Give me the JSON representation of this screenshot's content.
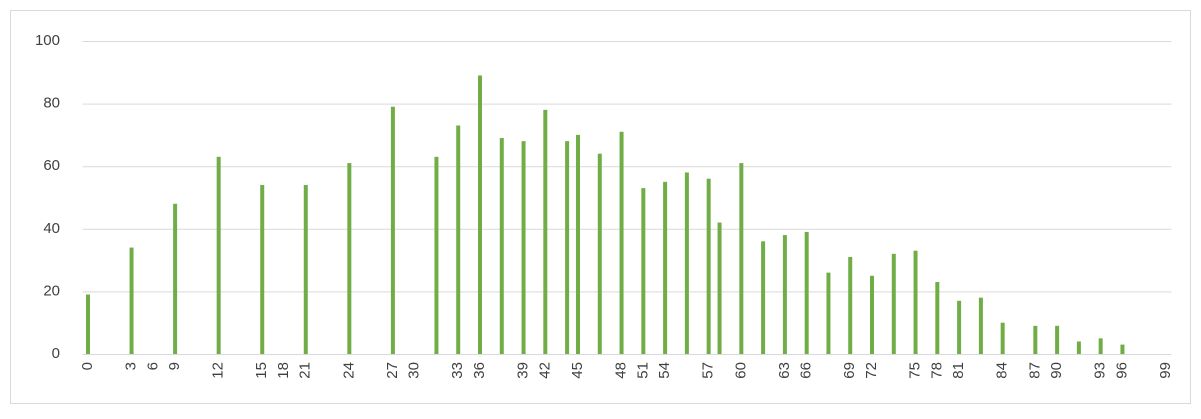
{
  "chart_data": {
    "type": "bar",
    "categories": [
      0,
      null,
      null,
      null,
      3,
      null,
      6,
      null,
      9,
      null,
      null,
      null,
      12,
      null,
      null,
      null,
      15,
      null,
      18,
      null,
      21,
      null,
      null,
      null,
      24,
      null,
      null,
      null,
      27,
      null,
      30,
      null,
      null,
      null,
      33,
      null,
      36,
      null,
      null,
      null,
      39,
      null,
      42,
      null,
      null,
      45,
      null,
      null,
      null,
      48,
      null,
      51,
      null,
      54,
      null,
      null,
      null,
      57,
      null,
      null,
      60,
      null,
      null,
      null,
      63,
      null,
      66,
      null,
      null,
      null,
      69,
      null,
      72,
      null,
      null,
      null,
      75,
      null,
      78,
      null,
      81,
      null,
      null,
      null,
      84,
      null,
      null,
      87,
      null,
      90,
      null,
      null,
      null,
      93,
      null,
      96,
      null,
      null,
      null,
      99
    ],
    "values": [
      19,
      null,
      null,
      null,
      34,
      null,
      null,
      null,
      48,
      null,
      null,
      null,
      63,
      null,
      null,
      null,
      54,
      null,
      null,
      null,
      54,
      null,
      null,
      null,
      61,
      null,
      null,
      null,
      79,
      null,
      null,
      null,
      63,
      null,
      73,
      null,
      89,
      null,
      69,
      null,
      68,
      null,
      78,
      null,
      68,
      70,
      null,
      64,
      null,
      71,
      null,
      53,
      null,
      55,
      null,
      58,
      null,
      56,
      42,
      null,
      61,
      null,
      36,
      null,
      38,
      null,
      39,
      null,
      26,
      null,
      31,
      null,
      25,
      null,
      32,
      null,
      33,
      null,
      23,
      null,
      17,
      null,
      18,
      null,
      10,
      null,
      null,
      9,
      null,
      9,
      null,
      4,
      null,
      5,
      null,
      3,
      null,
      null,
      null,
      null
    ],
    "color": "#70ad47",
    "ylim": [
      0,
      100
    ],
    "yticks": [
      0,
      20,
      40,
      60,
      80,
      100
    ],
    "grid": true
  }
}
